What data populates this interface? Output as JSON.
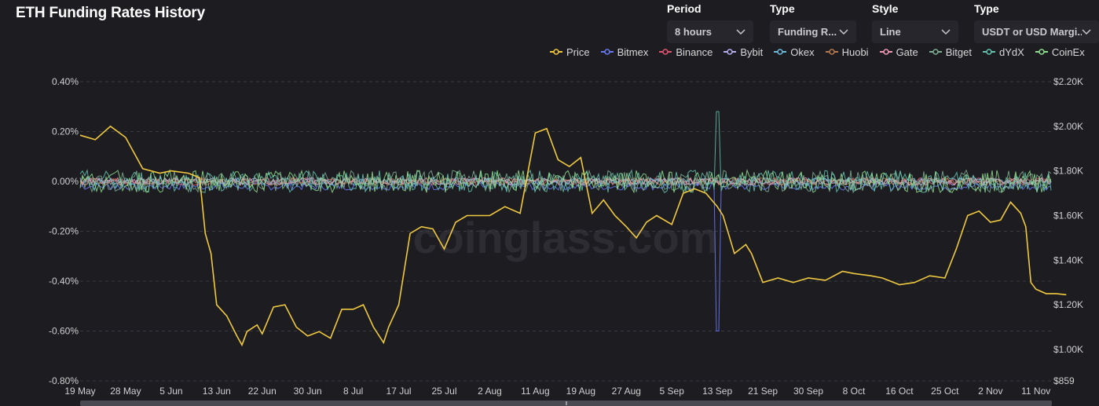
{
  "title": "ETH Funding Rates History",
  "controls": [
    {
      "label": "Period",
      "value": "8 hours"
    },
    {
      "label": "Type",
      "value": "Funding R..."
    },
    {
      "label": "Style",
      "value": "Line"
    },
    {
      "label": "Type",
      "value": "USDT or USD Margi..."
    }
  ],
  "icons": {
    "dropdown": "chevron-down-icon"
  },
  "watermark": "coinglass.com",
  "colors": {
    "background": "#1c1c21",
    "grid": "#3a3a42",
    "Price": "#f0c93f",
    "Bitmex": "#6979f8",
    "Binance": "#e05472",
    "Bybit": "#b6b0f2",
    "Okex": "#6bbde0",
    "Huobi": "#b77a4e",
    "Gate": "#f29bb3",
    "Bitget": "#7fae93",
    "dYdX": "#64c4b0",
    "CoinEx": "#90e08e"
  },
  "chart_data": {
    "type": "line",
    "title": "ETH Funding Rates History",
    "legend": [
      "Price",
      "Bitmex",
      "Binance",
      "Bybit",
      "Okex",
      "Huobi",
      "Gate",
      "Bitget",
      "dYdX",
      "CoinEx"
    ],
    "legend_position": "top-right",
    "grid": true,
    "x_ticks": [
      "19 May",
      "28 May",
      "5 Jun",
      "13 Jun",
      "22 Jun",
      "30 Jun",
      "8 Jul",
      "17 Jul",
      "25 Jul",
      "2 Aug",
      "11 Aug",
      "19 Aug",
      "27 Aug",
      "5 Sep",
      "13 Sep",
      "21 Sep",
      "30 Sep",
      "8 Oct",
      "16 Oct",
      "25 Oct",
      "2 Nov",
      "11 Nov"
    ],
    "y_left": {
      "ticks": [
        "0.40%",
        "0.20%",
        "0.00%",
        "-0.20%",
        "-0.40%",
        "-0.60%",
        "-0.80%"
      ],
      "range": [
        -0.8,
        0.4
      ],
      "unit": "%"
    },
    "y_right": {
      "ticks": [
        "$2.20K",
        "$2.00K",
        "$1.80K",
        "$1.60K",
        "$1.40K",
        "$1.20K",
        "$1.00K",
        "$859"
      ],
      "range": [
        859,
        2200
      ],
      "unit": "$"
    },
    "series": [
      {
        "name": "Price",
        "axis": "right",
        "x": [
          "19 May",
          "22 May",
          "25 May",
          "28 May",
          "31 May",
          "3 Jun",
          "5 Jun",
          "8 Jun",
          "10 Jun",
          "11 Jun",
          "12 Jun",
          "13 Jun",
          "15 Jun",
          "17 Jun",
          "18 Jun",
          "19 Jun",
          "21 Jun",
          "22 Jun",
          "24 Jun",
          "26 Jun",
          "28 Jun",
          "30 Jun",
          "2 Jul",
          "4 Jul",
          "6 Jul",
          "8 Jul",
          "10 Jul",
          "12 Jul",
          "14 Jul",
          "15 Jul",
          "17 Jul",
          "19 Jul",
          "21 Jul",
          "23 Jul",
          "25 Jul",
          "27 Jul",
          "29 Jul",
          "2 Aug",
          "5 Aug",
          "8 Aug",
          "11 Aug",
          "13 Aug",
          "15 Aug",
          "17 Aug",
          "19 Aug",
          "21 Aug",
          "23 Aug",
          "25 Aug",
          "27 Aug",
          "29 Aug",
          "31 Aug",
          "2 Sep",
          "5 Sep",
          "7 Sep",
          "9 Sep",
          "11 Sep",
          "13 Sep",
          "14 Sep",
          "16 Sep",
          "18 Sep",
          "19 Sep",
          "21 Sep",
          "24 Sep",
          "27 Sep",
          "30 Sep",
          "3 Oct",
          "6 Oct",
          "8 Oct",
          "11 Oct",
          "13 Oct",
          "16 Oct",
          "19 Oct",
          "22 Oct",
          "25 Oct",
          "27 Oct",
          "29 Oct",
          "31 Oct",
          "2 Nov",
          "4 Nov",
          "6 Nov",
          "8 Nov",
          "9 Nov",
          "10 Nov",
          "11 Nov",
          "13 Nov",
          "15 Nov",
          "17 Nov"
        ],
        "values": [
          1960,
          1940,
          2000,
          1950,
          1810,
          1790,
          1800,
          1790,
          1770,
          1520,
          1430,
          1200,
          1150,
          1060,
          1020,
          1080,
          1110,
          1070,
          1190,
          1200,
          1100,
          1060,
          1080,
          1050,
          1180,
          1180,
          1200,
          1100,
          1030,
          1100,
          1200,
          1520,
          1550,
          1540,
          1450,
          1570,
          1600,
          1600,
          1640,
          1610,
          1970,
          1990,
          1850,
          1820,
          1860,
          1610,
          1670,
          1600,
          1550,
          1500,
          1570,
          1600,
          1560,
          1700,
          1720,
          1700,
          1640,
          1600,
          1430,
          1470,
          1430,
          1300,
          1320,
          1300,
          1320,
          1310,
          1350,
          1340,
          1330,
          1320,
          1290,
          1300,
          1330,
          1320,
          1450,
          1600,
          1620,
          1570,
          1580,
          1660,
          1610,
          1550,
          1300,
          1270,
          1250,
          1250,
          1245
        ]
      },
      {
        "name": "Bitmex",
        "axis": "left",
        "note": "funding rate oscillating mostly between -0.05% and 0.02%, spike to -0.60% on 13 Sep"
      },
      {
        "name": "Binance",
        "axis": "left"
      },
      {
        "name": "Bybit",
        "axis": "left"
      },
      {
        "name": "Okex",
        "axis": "left"
      },
      {
        "name": "Huobi",
        "axis": "left"
      },
      {
        "name": "Gate",
        "axis": "left"
      },
      {
        "name": "Bitget",
        "axis": "left"
      },
      {
        "name": "dYdX",
        "axis": "left"
      },
      {
        "name": "CoinEx",
        "axis": "left"
      }
    ]
  }
}
